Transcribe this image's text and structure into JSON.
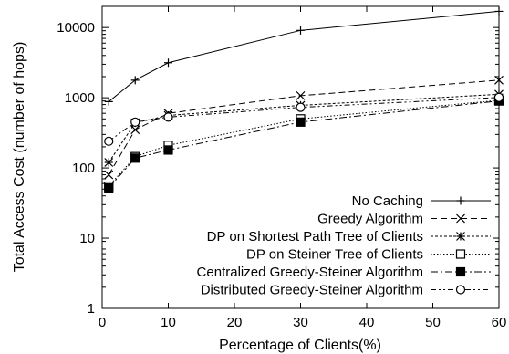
{
  "chart_data": {
    "type": "line",
    "title": "",
    "xlabel": "Percentage of Clients(%)",
    "ylabel": "Total Access Cost (number of hops)",
    "xlim": [
      0,
      60
    ],
    "ylim": [
      1,
      20000
    ],
    "yscale": "log",
    "xticks": [
      0,
      10,
      20,
      30,
      40,
      50,
      60
    ],
    "yticks": [
      1,
      10,
      100,
      1000,
      10000
    ],
    "legend_position": "bottom-right",
    "series": [
      {
        "name": "No Caching",
        "marker": "plus",
        "line_style": "solid",
        "x": [
          1,
          5,
          10,
          30,
          60
        ],
        "y": [
          880,
          1780,
          3150,
          9100,
          17000
        ]
      },
      {
        "name": "Greedy Algorithm",
        "marker": "cross",
        "line_style": "dashed",
        "x": [
          1,
          5,
          10,
          30,
          60
        ],
        "y": [
          80,
          350,
          600,
          1070,
          1780
        ]
      },
      {
        "name": "DP on Shortest Path Tree of Clients",
        "marker": "star",
        "line_style": "dash-dot-small",
        "x": [
          1,
          5,
          10,
          30,
          60
        ],
        "y": [
          120,
          440,
          560,
          780,
          1120
        ]
      },
      {
        "name": "DP on Steiner Tree of Clients",
        "marker": "open-square",
        "line_style": "dotted",
        "x": [
          1,
          5,
          10,
          30,
          60
        ],
        "y": [
          55,
          145,
          210,
          500,
          920
        ]
      },
      {
        "name": "Centralized Greedy-Steiner Algorithm",
        "marker": "filled-square",
        "line_style": "dash-dot",
        "x": [
          1,
          5,
          10,
          30,
          60
        ],
        "y": [
          52,
          138,
          180,
          450,
          900
        ]
      },
      {
        "name": "Distributed Greedy-Steiner Algorithm",
        "marker": "open-circle",
        "line_style": "dash-dot-dot",
        "x": [
          1,
          5,
          10,
          30,
          60
        ],
        "y": [
          240,
          450,
          530,
          730,
          1010
        ]
      }
    ]
  }
}
